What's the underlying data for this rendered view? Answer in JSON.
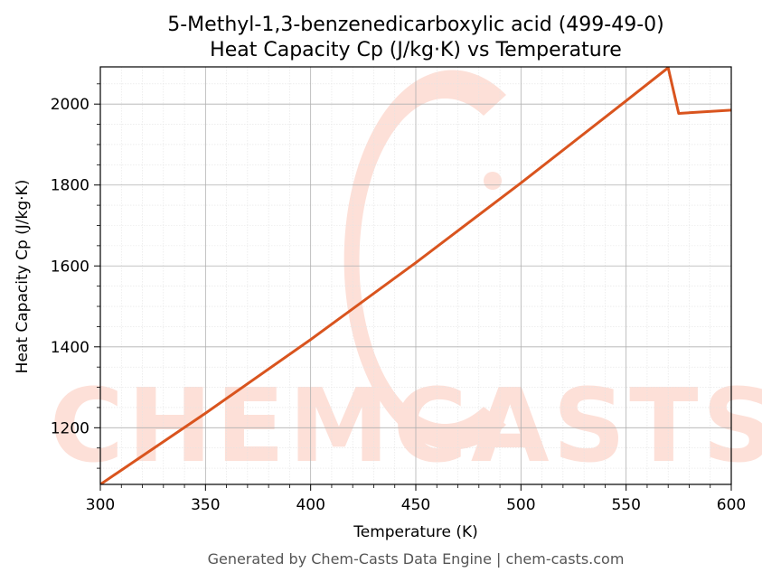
{
  "chart_data": {
    "type": "line",
    "title": "5-Methyl-1,3-benzenedicarboxylic acid (499-49-0)",
    "subtitle": "Heat Capacity Cp (J/kg·K) vs Temperature",
    "xlabel": "Temperature (K)",
    "ylabel": "Heat Capacity Cp (J/kg·K)",
    "xlim": [
      300,
      600
    ],
    "ylim": [
      1060,
      2092
    ],
    "xticks": [
      300,
      350,
      400,
      450,
      500,
      550,
      600
    ],
    "yticks": [
      1200,
      1400,
      1600,
      1800,
      2000
    ],
    "grid": true,
    "series": [
      {
        "color": "#d9541e",
        "x": [
          300,
          350,
          400,
          450,
          500,
          550,
          570,
          575,
          600
        ],
        "y": [
          1060,
          1236,
          1418,
          1608,
          1805,
          2008,
          2090,
          1977,
          1985
        ]
      }
    ]
  },
  "watermark": "CHEMCASTS",
  "footer": "Generated by Chem-Casts Data Engine | chem-casts.com"
}
